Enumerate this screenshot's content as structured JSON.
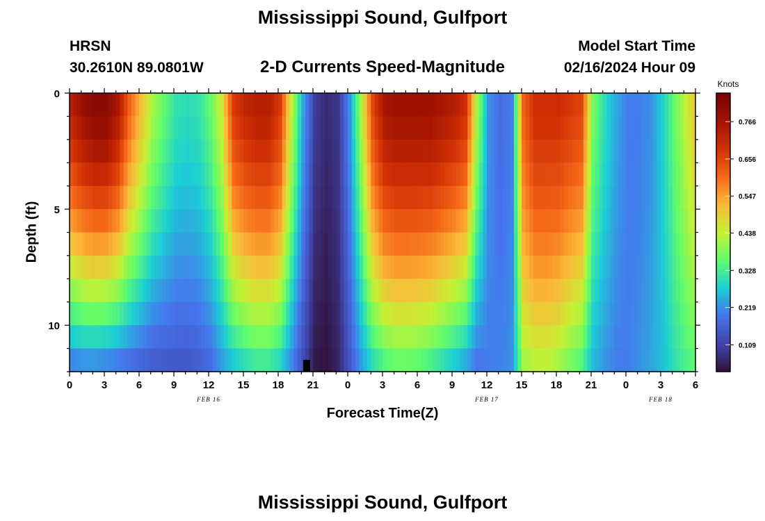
{
  "chart_data": {
    "type": "heatmap",
    "title": "Mississippi Sound, Gulfport",
    "subtitle": "2-D Currents Speed-Magnitude",
    "station": "HRSN",
    "coordinates": "30.2610N  89.0801W",
    "model_start_label": "Model Start Time",
    "model_start_value": "02/16/2024 Hour 09",
    "xlabel": "Forecast Time(Z)",
    "ylabel": "Depth (ft)",
    "x_range_hours": [
      0,
      54
    ],
    "x_tick_labels": [
      "0",
      "3",
      "6",
      "9",
      "12",
      "15",
      "18",
      "21",
      "0",
      "3",
      "6",
      "9",
      "12",
      "15",
      "18",
      "21",
      "0",
      "3",
      "6"
    ],
    "date_labels": [
      {
        "label": "FEB 16",
        "hour": 12
      },
      {
        "label": "FEB 17",
        "hour": 36
      },
      {
        "label": "FEB 18",
        "hour": 51
      }
    ],
    "y_range_ft": [
      0,
      12
    ],
    "y_tick_labels": [
      "0",
      "5",
      "10"
    ],
    "y_tick_values": [
      0,
      5,
      10
    ],
    "colorbar": {
      "unit": "Knots",
      "min": 0.03,
      "max": 0.85,
      "tick_labels": [
        "0.766",
        "0.656",
        "0.547",
        "0.438",
        "0.328",
        "0.219",
        "0.109"
      ],
      "tick_values": [
        0.766,
        0.656,
        0.547,
        0.438,
        0.328,
        0.219,
        0.109
      ]
    },
    "speed_profile_knots": {
      "description": "approx. surface and bottom speed at each forecast hour",
      "hours": [
        0,
        1,
        2,
        3,
        4,
        5,
        6,
        7,
        8,
        9,
        10,
        11,
        12,
        13,
        14,
        15,
        16,
        17,
        18,
        19,
        20,
        21,
        22,
        23,
        24,
        25,
        26,
        27,
        28,
        29,
        30,
        31,
        32,
        33,
        34,
        35,
        36,
        37,
        38,
        39,
        40,
        41,
        42,
        43,
        44,
        45,
        46,
        47,
        48,
        49,
        50,
        51,
        52,
        53,
        54
      ],
      "surface": [
        0.74,
        0.79,
        0.82,
        0.82,
        0.76,
        0.62,
        0.52,
        0.42,
        0.36,
        0.31,
        0.3,
        0.31,
        0.36,
        0.46,
        0.68,
        0.72,
        0.74,
        0.74,
        0.68,
        0.44,
        0.24,
        0.1,
        0.07,
        0.09,
        0.22,
        0.42,
        0.66,
        0.76,
        0.78,
        0.78,
        0.78,
        0.78,
        0.76,
        0.74,
        0.7,
        0.42,
        0.22,
        0.18,
        0.2,
        0.62,
        0.7,
        0.7,
        0.7,
        0.68,
        0.66,
        0.38,
        0.3,
        0.24,
        0.2,
        0.2,
        0.22,
        0.28,
        0.36,
        0.44,
        0.52
      ],
      "bottom": [
        0.18,
        0.19,
        0.19,
        0.18,
        0.17,
        0.16,
        0.15,
        0.14,
        0.14,
        0.14,
        0.14,
        0.15,
        0.17,
        0.22,
        0.25,
        0.28,
        0.3,
        0.3,
        0.27,
        0.2,
        0.12,
        0.04,
        0.03,
        0.06,
        0.14,
        0.22,
        0.28,
        0.32,
        0.34,
        0.34,
        0.33,
        0.31,
        0.28,
        0.25,
        0.22,
        0.18,
        0.2,
        0.21,
        0.22,
        0.4,
        0.42,
        0.42,
        0.4,
        0.36,
        0.33,
        0.25,
        0.22,
        0.2,
        0.2,
        0.22,
        0.24,
        0.26,
        0.3,
        0.33,
        0.35
      ]
    }
  }
}
